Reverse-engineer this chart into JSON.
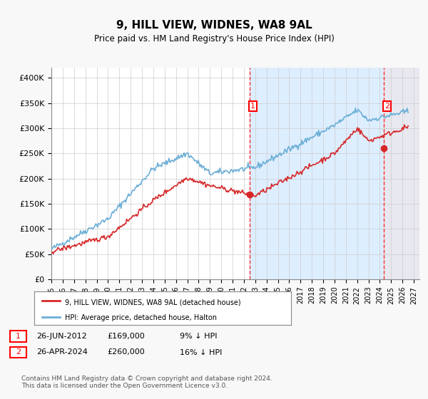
{
  "title": "9, HILL VIEW, WIDNES, WA8 9AL",
  "subtitle": "Price paid vs. HM Land Registry's House Price Index (HPI)",
  "ylabel_ticks": [
    "£0",
    "£50K",
    "£100K",
    "£150K",
    "£200K",
    "£250K",
    "£300K",
    "£350K",
    "£400K"
  ],
  "ytick_values": [
    0,
    50000,
    100000,
    150000,
    200000,
    250000,
    300000,
    350000,
    400000
  ],
  "ylim": [
    0,
    420000
  ],
  "xlim_start": 1995.0,
  "xlim_end": 2027.5,
  "xticks": [
    1995,
    1996,
    1997,
    1998,
    1999,
    2000,
    2001,
    2002,
    2003,
    2004,
    2005,
    2006,
    2007,
    2008,
    2009,
    2010,
    2011,
    2012,
    2013,
    2014,
    2015,
    2016,
    2017,
    2018,
    2019,
    2020,
    2021,
    2022,
    2023,
    2024,
    2025,
    2026,
    2027
  ],
  "hpi_color": "#6baed6",
  "price_color": "#d62728",
  "shade_color": "#ddeeff",
  "hatch_color": "#cccccc",
  "sale1_date": 2012.49,
  "sale1_price": 169000,
  "sale1_label": "1",
  "sale2_date": 2024.32,
  "sale2_price": 260000,
  "sale2_label": "2",
  "legend_line1": "9, HILL VIEW, WIDNES, WA8 9AL (detached house)",
  "legend_line2": "HPI: Average price, detached house, Halton",
  "annot1": "26-JUN-2012",
  "annot1_price": "£169,000",
  "annot1_hpi": "9% ↓ HPI",
  "annot2": "26-APR-2024",
  "annot2_price": "£260,000",
  "annot2_hpi": "16% ↓ HPI",
  "footer": "Contains HM Land Registry data © Crown copyright and database right 2024.\nThis data is licensed under the Open Government Licence v3.0.",
  "bg_color": "#f0f4ff",
  "plot_bg": "#ffffff"
}
